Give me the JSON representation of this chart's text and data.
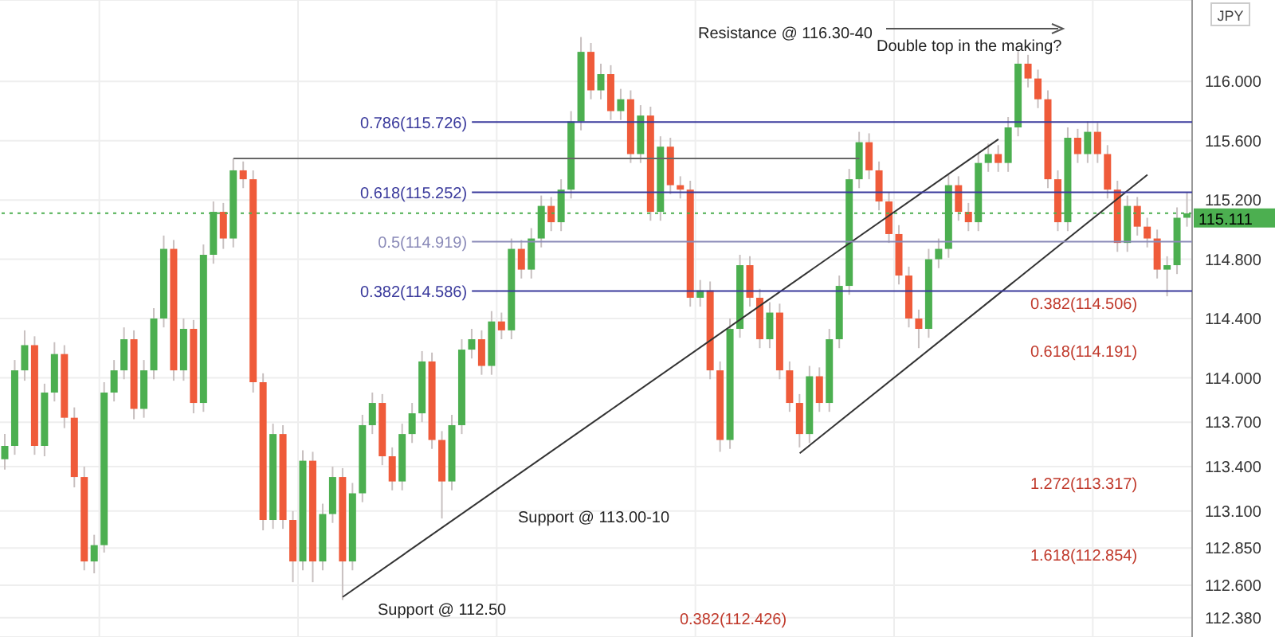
{
  "chart_data": {
    "type": "candlestick",
    "categories": [
      null,
      null,
      null,
      null,
      null,
      null,
      null,
      null,
      null,
      null,
      null,
      null,
      null,
      null,
      null,
      null,
      null,
      null,
      null,
      null,
      null,
      null,
      null,
      null,
      null,
      null,
      null,
      null,
      null,
      null,
      null,
      null,
      null,
      null,
      null,
      null,
      null,
      null,
      null,
      null,
      null,
      null,
      null,
      null,
      null,
      null,
      null,
      null,
      null,
      null,
      null,
      null,
      null,
      null,
      null,
      null,
      null,
      null,
      null,
      null,
      null,
      null,
      null,
      null,
      null,
      null,
      null,
      null,
      null,
      null,
      null,
      null,
      null,
      null,
      null,
      null,
      null,
      null,
      null,
      null,
      null,
      null,
      null,
      null,
      null,
      null,
      null,
      null,
      null,
      null,
      null,
      null,
      null,
      null,
      null,
      null,
      null,
      null,
      null,
      null,
      null,
      null,
      null,
      null,
      null,
      null,
      null,
      null,
      null,
      null,
      null,
      null,
      null,
      null,
      null,
      null,
      null,
      null,
      null,
      null
    ],
    "ohlc": [
      [
        113.45,
        113.62,
        113.38,
        113.54
      ],
      [
        113.54,
        114.12,
        113.48,
        114.05
      ],
      [
        114.05,
        114.32,
        113.98,
        114.22
      ],
      [
        114.22,
        114.28,
        113.48,
        113.54
      ],
      [
        113.54,
        113.96,
        113.47,
        113.9
      ],
      [
        113.9,
        114.24,
        113.84,
        114.16
      ],
      [
        114.16,
        114.22,
        113.66,
        113.73
      ],
      [
        113.73,
        113.8,
        113.26,
        113.33
      ],
      [
        113.33,
        113.4,
        112.7,
        112.76
      ],
      [
        112.76,
        112.94,
        112.68,
        112.87
      ],
      [
        112.87,
        113.97,
        112.82,
        113.9
      ],
      [
        113.9,
        114.12,
        113.84,
        114.05
      ],
      [
        114.05,
        114.34,
        113.99,
        114.26
      ],
      [
        114.26,
        114.32,
        113.72,
        113.79
      ],
      [
        113.79,
        114.12,
        113.73,
        114.05
      ],
      [
        114.05,
        114.47,
        113.99,
        114.4
      ],
      [
        114.4,
        114.96,
        114.34,
        114.87
      ],
      [
        114.87,
        114.93,
        113.98,
        114.05
      ],
      [
        114.05,
        114.4,
        113.98,
        114.33
      ],
      [
        114.33,
        114.39,
        113.76,
        113.83
      ],
      [
        113.83,
        114.9,
        113.77,
        114.83
      ],
      [
        114.83,
        115.19,
        114.77,
        115.12
      ],
      [
        115.12,
        115.18,
        114.87,
        114.94
      ],
      [
        114.94,
        115.48,
        114.88,
        115.4
      ],
      [
        115.4,
        115.46,
        115.28,
        115.34
      ],
      [
        115.34,
        115.4,
        113.9,
        113.97
      ],
      [
        113.97,
        114.03,
        112.97,
        113.04
      ],
      [
        113.04,
        113.69,
        112.98,
        113.62
      ],
      [
        113.62,
        113.68,
        112.98,
        113.04
      ],
      [
        113.04,
        113.1,
        112.62,
        112.76
      ],
      [
        112.76,
        113.51,
        112.7,
        113.44
      ],
      [
        113.44,
        113.5,
        112.62,
        112.76
      ],
      [
        112.76,
        113.15,
        112.7,
        113.08
      ],
      [
        113.08,
        113.4,
        113.02,
        113.33
      ],
      [
        113.33,
        113.39,
        112.5,
        112.76
      ],
      [
        112.76,
        113.29,
        112.7,
        113.22
      ],
      [
        113.22,
        113.75,
        113.16,
        113.68
      ],
      [
        113.68,
        113.9,
        113.62,
        113.83
      ],
      [
        113.83,
        113.89,
        113.41,
        113.47
      ],
      [
        113.47,
        113.53,
        113.24,
        113.3
      ],
      [
        113.3,
        113.69,
        113.24,
        113.62
      ],
      [
        113.62,
        113.83,
        113.56,
        113.76
      ],
      [
        113.76,
        114.18,
        113.7,
        114.11
      ],
      [
        114.11,
        114.17,
        113.52,
        113.58
      ],
      [
        113.58,
        113.64,
        113.05,
        113.3
      ],
      [
        113.3,
        113.75,
        113.24,
        113.68
      ],
      [
        113.68,
        114.26,
        113.62,
        114.19
      ],
      [
        114.19,
        114.33,
        114.13,
        114.26
      ],
      [
        114.26,
        114.32,
        114.02,
        114.08
      ],
      [
        114.08,
        114.45,
        114.02,
        114.38
      ],
      [
        114.38,
        114.44,
        114.26,
        114.32
      ],
      [
        114.32,
        114.94,
        114.26,
        114.87
      ],
      [
        114.87,
        114.93,
        114.67,
        114.73
      ],
      [
        114.73,
        115.01,
        114.67,
        114.94
      ],
      [
        114.94,
        115.23,
        114.88,
        115.16
      ],
      [
        115.16,
        115.22,
        114.99,
        115.05
      ],
      [
        115.05,
        115.34,
        114.99,
        115.27
      ],
      [
        115.27,
        115.8,
        115.21,
        115.73
      ],
      [
        115.73,
        116.3,
        115.67,
        116.2
      ],
      [
        116.2,
        116.26,
        115.88,
        115.94
      ],
      [
        115.94,
        116.12,
        115.88,
        116.05
      ],
      [
        116.05,
        116.11,
        115.74,
        115.8
      ],
      [
        115.8,
        115.95,
        115.74,
        115.88
      ],
      [
        115.88,
        115.94,
        115.45,
        115.51
      ],
      [
        115.51,
        115.84,
        115.45,
        115.77
      ],
      [
        115.77,
        115.83,
        115.06,
        115.12
      ],
      [
        115.12,
        115.63,
        115.06,
        115.56
      ],
      [
        115.56,
        115.62,
        115.24,
        115.3
      ],
      [
        115.3,
        115.36,
        115.21,
        115.27
      ],
      [
        115.27,
        115.33,
        114.48,
        114.54
      ],
      [
        114.54,
        114.66,
        114.48,
        114.59
      ],
      [
        114.59,
        114.65,
        113.99,
        114.05
      ],
      [
        114.05,
        114.11,
        113.5,
        113.58
      ],
      [
        113.58,
        114.4,
        113.52,
        114.33
      ],
      [
        114.33,
        114.83,
        114.27,
        114.76
      ],
      [
        114.76,
        114.82,
        114.48,
        114.54
      ],
      [
        114.54,
        114.6,
        114.2,
        114.26
      ],
      [
        114.26,
        114.51,
        114.2,
        114.44
      ],
      [
        114.44,
        114.5,
        113.99,
        114.05
      ],
      [
        114.05,
        114.11,
        113.77,
        113.83
      ],
      [
        113.83,
        113.89,
        113.53,
        113.62
      ],
      [
        113.62,
        114.08,
        113.56,
        114.01
      ],
      [
        114.01,
        114.07,
        113.77,
        113.83
      ],
      [
        113.83,
        114.33,
        113.77,
        114.26
      ],
      [
        114.26,
        114.69,
        114.2,
        114.62
      ],
      [
        114.62,
        115.41,
        114.56,
        115.34
      ],
      [
        115.34,
        115.66,
        115.28,
        115.59
      ],
      [
        115.59,
        115.65,
        115.34,
        115.4
      ],
      [
        115.4,
        115.46,
        115.13,
        115.19
      ],
      [
        115.19,
        115.25,
        114.91,
        114.97
      ],
      [
        114.97,
        115.03,
        114.63,
        114.69
      ],
      [
        114.69,
        114.75,
        114.34,
        114.4
      ],
      [
        114.4,
        114.46,
        114.2,
        114.33
      ],
      [
        114.33,
        114.87,
        114.27,
        114.8
      ],
      [
        114.8,
        114.94,
        114.74,
        114.87
      ],
      [
        114.87,
        115.37,
        114.81,
        115.3
      ],
      [
        115.3,
        115.36,
        115.06,
        115.12
      ],
      [
        115.12,
        115.18,
        114.99,
        115.05
      ],
      [
        115.05,
        115.52,
        114.99,
        115.45
      ],
      [
        115.45,
        115.58,
        115.39,
        115.51
      ],
      [
        115.51,
        115.57,
        115.39,
        115.45
      ],
      [
        115.45,
        115.76,
        115.39,
        115.69
      ],
      [
        115.69,
        116.2,
        115.63,
        116.12
      ],
      [
        116.12,
        116.18,
        115.96,
        116.02
      ],
      [
        116.02,
        116.08,
        115.82,
        115.88
      ],
      [
        115.88,
        115.94,
        115.28,
        115.34
      ],
      [
        115.34,
        115.4,
        114.99,
        115.05
      ],
      [
        115.05,
        115.69,
        114.99,
        115.62
      ],
      [
        115.62,
        115.68,
        115.45,
        115.51
      ],
      [
        115.51,
        115.73,
        115.45,
        115.66
      ],
      [
        115.66,
        115.72,
        115.45,
        115.51
      ],
      [
        115.51,
        115.57,
        115.21,
        115.27
      ],
      [
        115.27,
        115.33,
        114.85,
        114.91
      ],
      [
        114.91,
        115.23,
        114.85,
        115.16
      ],
      [
        115.16,
        115.22,
        114.96,
        115.02
      ],
      [
        115.02,
        115.08,
        114.88,
        114.94
      ],
      [
        114.94,
        115.0,
        114.67,
        114.73
      ],
      [
        114.73,
        114.82,
        114.55,
        114.76
      ],
      [
        114.76,
        115.15,
        114.7,
        115.08
      ],
      [
        115.08,
        115.25,
        115.02,
        115.11
      ]
    ],
    "series": [
      {
        "type": "line",
        "color": "#333333",
        "values": [
          null,
          null,
          null,
          null,
          null,
          null,
          null,
          null,
          null,
          null,
          null,
          null,
          null,
          null,
          null,
          null,
          null,
          null,
          null,
          null,
          null,
          null,
          null,
          null,
          null,
          null,
          null,
          null,
          null,
          null,
          null,
          null,
          null,
          null,
          112.52,
          null,
          null,
          null,
          null,
          null,
          null,
          null,
          null,
          null,
          null,
          null,
          null,
          null,
          null,
          null,
          null,
          null,
          null,
          null,
          null,
          null,
          null,
          null,
          null,
          null,
          null,
          null,
          null,
          null,
          null,
          null,
          null,
          null,
          null,
          null,
          null,
          null,
          null,
          null,
          null,
          null,
          null,
          null,
          null,
          null,
          null,
          null,
          null,
          null,
          null,
          null,
          null,
          null,
          null,
          null,
          null,
          null,
          null,
          null,
          null,
          null,
          null,
          null,
          null,
          null,
          115.61,
          null,
          null,
          null,
          null,
          null,
          null,
          null,
          null,
          null,
          null,
          null,
          null,
          null,
          null,
          null,
          null,
          null,
          null,
          null
        ]
      },
      {
        "type": "line",
        "color": "#333333",
        "values": [
          null,
          null,
          null,
          null,
          null,
          null,
          null,
          null,
          null,
          null,
          null,
          null,
          null,
          null,
          null,
          null,
          null,
          null,
          null,
          null,
          null,
          null,
          null,
          null,
          null,
          null,
          null,
          null,
          null,
          null,
          null,
          null,
          null,
          null,
          null,
          null,
          null,
          null,
          null,
          null,
          null,
          null,
          null,
          null,
          null,
          null,
          null,
          null,
          null,
          null,
          null,
          null,
          null,
          null,
          null,
          null,
          null,
          null,
          null,
          null,
          null,
          null,
          null,
          null,
          null,
          null,
          null,
          null,
          null,
          null,
          null,
          null,
          null,
          null,
          null,
          null,
          null,
          null,
          null,
          null,
          113.49,
          null,
          null,
          null,
          null,
          null,
          null,
          null,
          null,
          null,
          null,
          null,
          null,
          null,
          null,
          null,
          null,
          null,
          null,
          null,
          null,
          null,
          null,
          null,
          null,
          null,
          null,
          null,
          null,
          null,
          null,
          null,
          null,
          null,
          null,
          115.37,
          null,
          null,
          null,
          null
        ]
      },
      {
        "type": "line",
        "color": "#666666",
        "values": [
          null,
          null,
          null,
          null,
          null,
          null,
          null,
          null,
          null,
          null,
          null,
          null,
          null,
          null,
          null,
          null,
          null,
          null,
          null,
          null,
          null,
          null,
          null,
          115.48,
          null,
          null,
          null,
          null,
          null,
          null,
          null,
          null,
          null,
          null,
          null,
          null,
          null,
          null,
          null,
          null,
          null,
          null,
          null,
          null,
          null,
          null,
          null,
          null,
          null,
          null,
          null,
          null,
          null,
          null,
          null,
          null,
          null,
          null,
          null,
          null,
          null,
          null,
          null,
          null,
          null,
          null,
          null,
          null,
          null,
          null,
          null,
          null,
          null,
          null,
          null,
          null,
          null,
          null,
          null,
          null,
          null,
          null,
          null,
          null,
          null,
          null,
          115.48,
          null,
          null,
          null,
          null,
          null,
          null,
          null,
          null,
          null,
          null,
          null,
          null,
          null,
          null,
          null,
          null,
          null,
          null,
          null,
          null,
          null,
          null,
          null,
          null,
          null,
          null,
          null,
          null,
          null,
          null,
          null,
          null,
          null
        ]
      }
    ],
    "ylim": [
      112.25,
      116.55
    ],
    "yticks": [
      {
        "value": 116,
        "label": "116.000"
      },
      {
        "value": 115.6,
        "label": "115.600"
      },
      {
        "value": 115.2,
        "label": "115.200"
      },
      {
        "value": 114.8,
        "label": "114.800"
      },
      {
        "value": 114.4,
        "label": "114.400"
      },
      {
        "value": 114,
        "label": "114.000"
      },
      {
        "value": 113.7,
        "label": "113.700"
      },
      {
        "value": 113.4,
        "label": "113.400"
      },
      {
        "value": 113.1,
        "label": "113.100"
      },
      {
        "value": 112.85,
        "label": "112.850"
      },
      {
        "value": 112.6,
        "label": "112.600"
      },
      {
        "value": 112.38,
        "label": "112.380"
      }
    ],
    "ref_lines": [
      {
        "axis": "y",
        "value": 115.726,
        "label": "0.786(115.726)",
        "color": "#3a3a9c",
        "line_style": "solid"
      },
      {
        "axis": "y",
        "value": 115.252,
        "label": "0.618(115.252)",
        "color": "#3a3a9c",
        "line_style": "solid"
      },
      {
        "axis": "y",
        "value": 114.919,
        "label": "0.5(114.919)",
        "color": "#8a8ab8",
        "line_style": "solid"
      },
      {
        "axis": "y",
        "value": 114.586,
        "label": "0.382(114.586)",
        "color": "#3a3a9c",
        "line_style": "solid"
      },
      {
        "axis": "y",
        "value": 115.111,
        "label": "115.111",
        "color": "#4caf50",
        "line_style": "dotted"
      }
    ],
    "annotations": [
      "Resistance @ 116.30-40",
      "Double top in the making?",
      "Support @ 113.00-10",
      "Support @ 112.50",
      "0.382(114.506)",
      "0.618(114.191)",
      "1.272(113.317)",
      "1.618(112.854)",
      "0.382(112.426)",
      "JPY"
    ],
    "grid": true,
    "tick_labels": "y"
  }
}
